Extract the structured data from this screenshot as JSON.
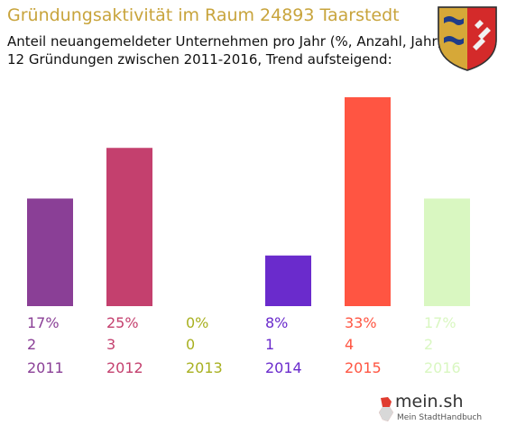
{
  "header": {
    "title": "Gründungsaktivität im Raum 24893 Taarstedt",
    "subtitle_line1": "Anteil neuangemeldeter Unternehmen pro Jahr (%, Anzahl, Jahr)",
    "subtitle_line2": "12 Gründungen zwischen 2011-2016, Trend aufsteigend:"
  },
  "logo": {
    "text": "mein.sh",
    "tagline": "Mein StadtHandbuch"
  },
  "chart_data": {
    "type": "bar",
    "categories": [
      "2011",
      "2012",
      "2013",
      "2014",
      "2015",
      "2016"
    ],
    "values": [
      17,
      25,
      0,
      8,
      33,
      17
    ],
    "percent_labels": [
      "17%",
      "25%",
      "0%",
      "8%",
      "33%",
      "17%"
    ],
    "count_labels": [
      "2",
      "3",
      "0",
      "1",
      "4",
      "2"
    ],
    "colors": [
      "#8a3f96",
      "#c4406e",
      "#a8b020",
      "#6a2bcc",
      "#ff5542",
      "#d9f7c1"
    ],
    "ylim": [
      0,
      33
    ],
    "grid": false,
    "legend": "none"
  }
}
